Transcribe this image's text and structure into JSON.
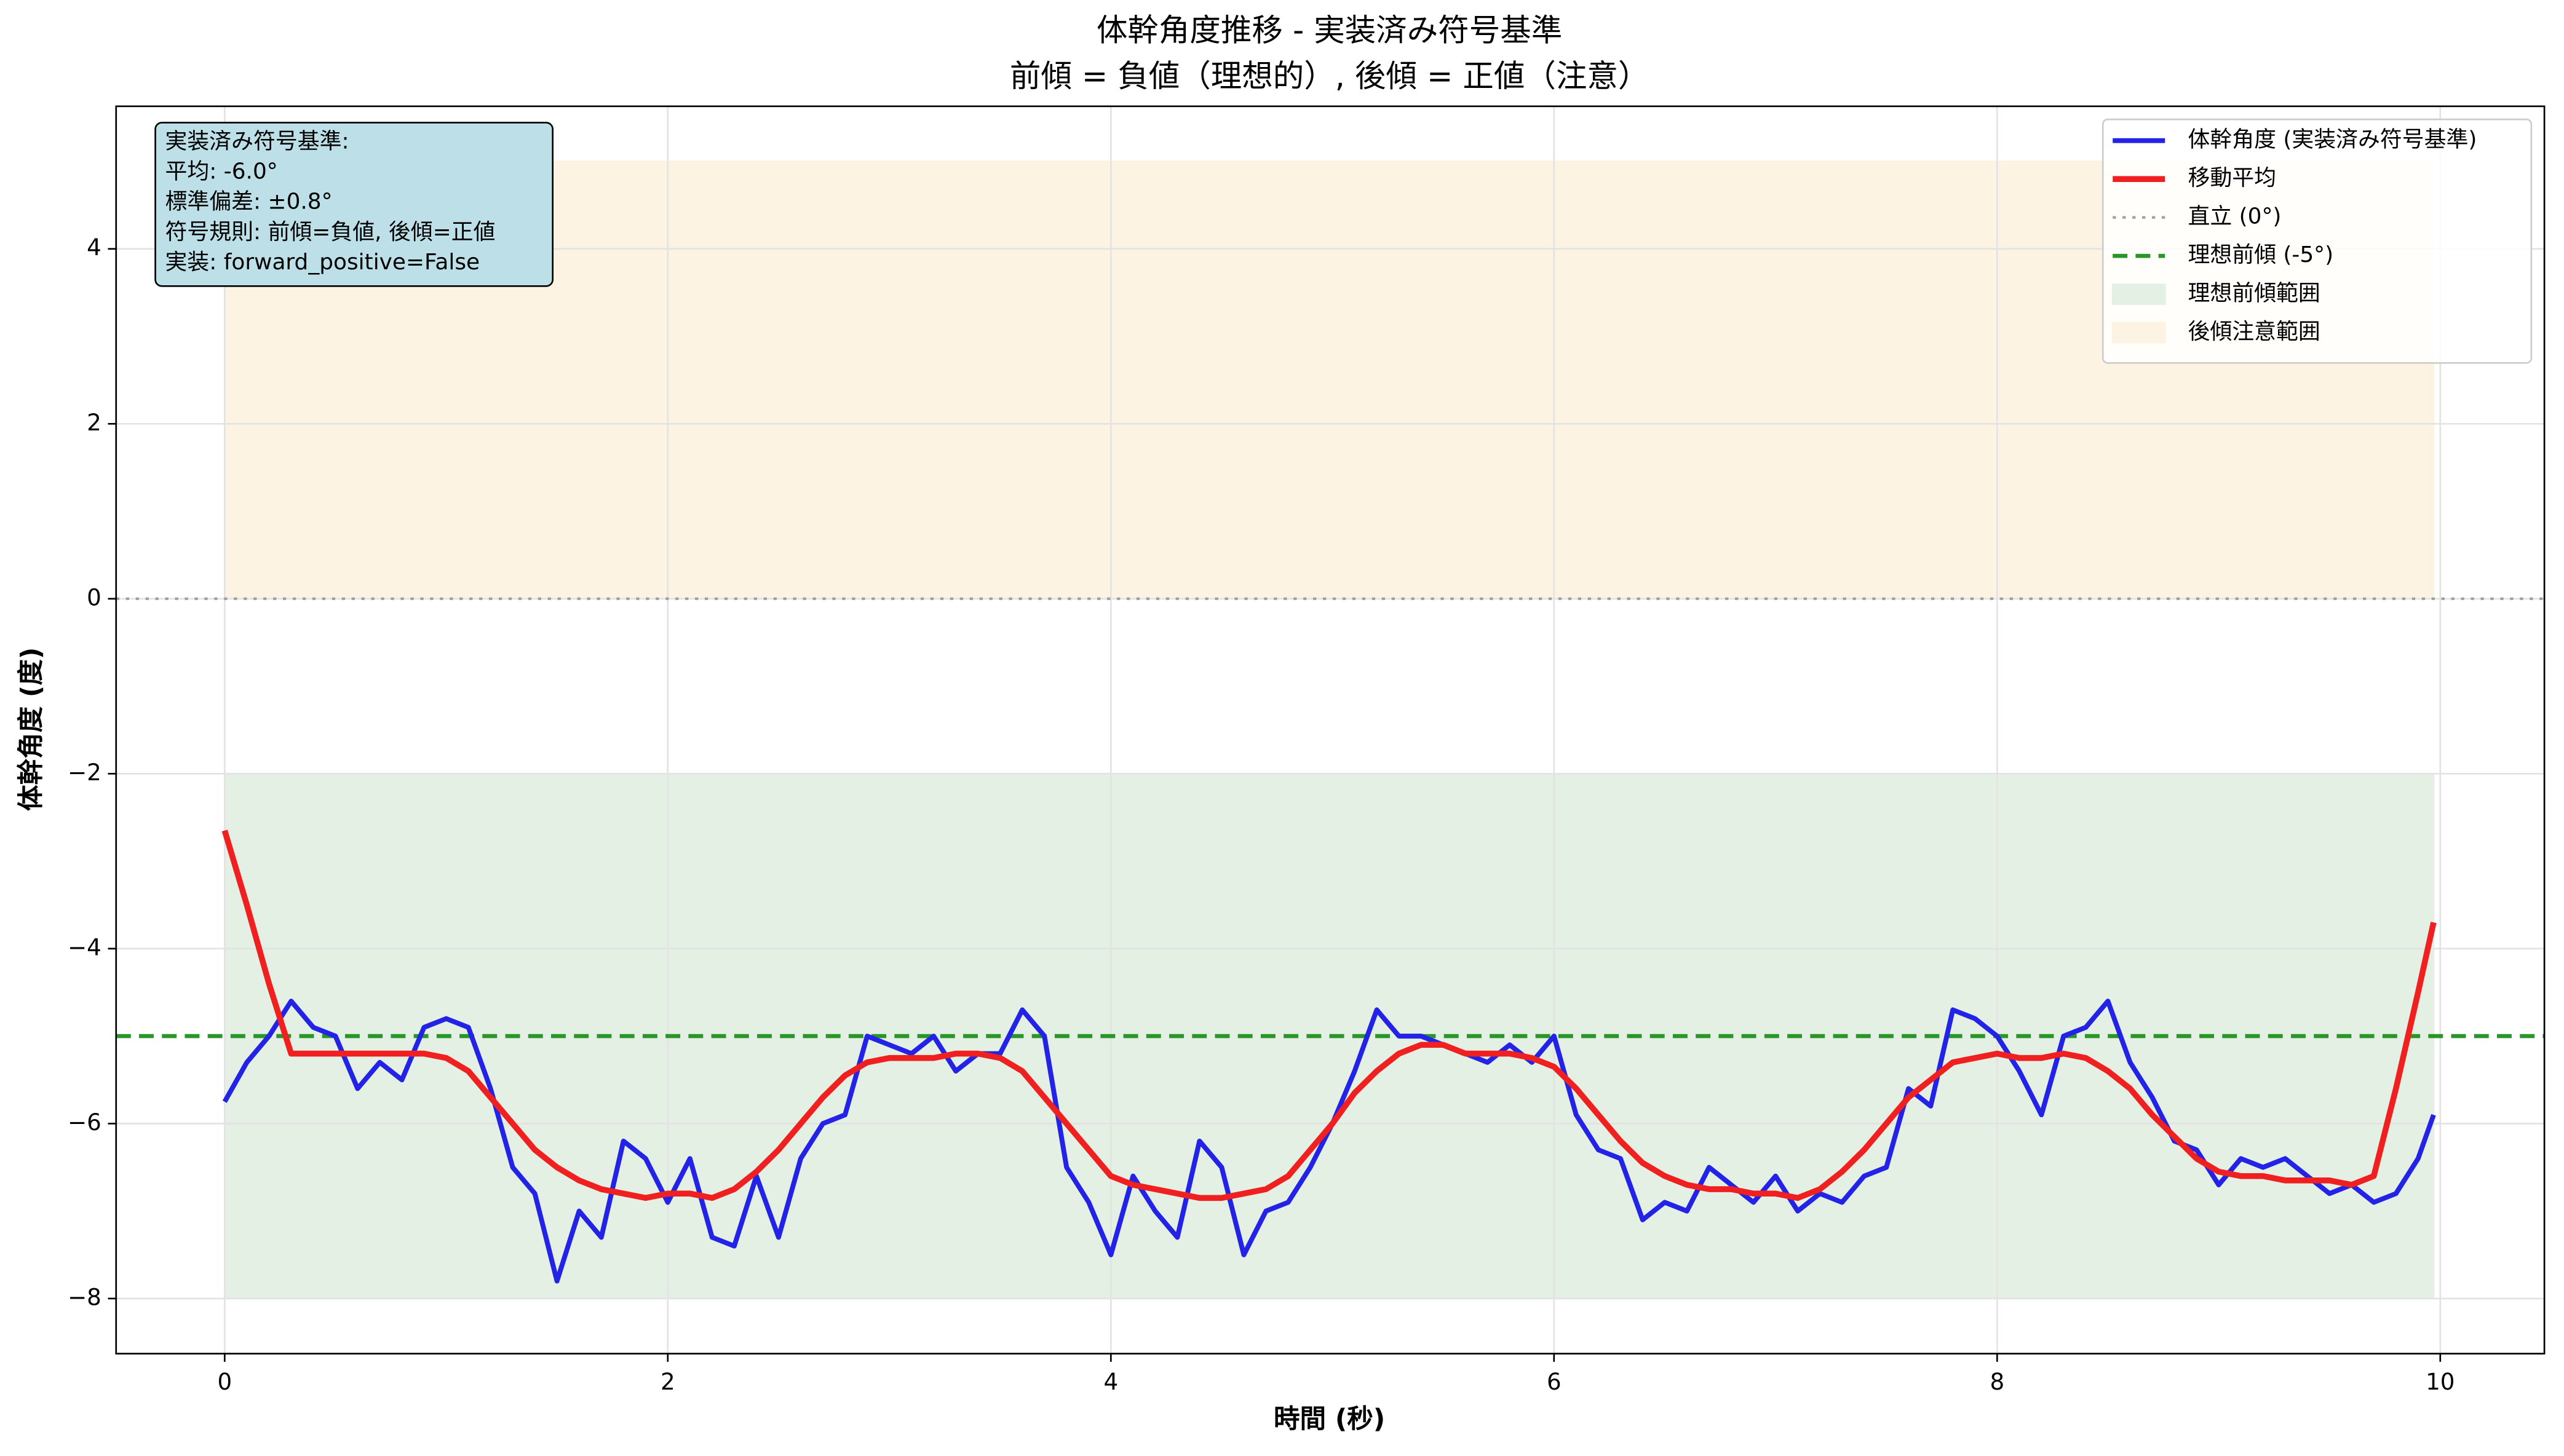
{
  "chart_data": {
    "type": "line",
    "title": "体幹角度推移 - 実装済み符号基準",
    "subtitle": "前傾 = 負値（理想的）, 後傾 = 正値（注意）",
    "xlabel": "時間 (秒)",
    "ylabel": "体幹角度 (度)",
    "xlim": [
      -0.49,
      10.47
    ],
    "ylim": [
      -8.63,
      5.63
    ],
    "xticks": [
      0,
      2,
      4,
      6,
      8,
      10
    ],
    "yticks": [
      {
        "value": -8,
        "label": "−8"
      },
      {
        "value": -6,
        "label": "−6"
      },
      {
        "value": -4,
        "label": "−4"
      },
      {
        "value": -2,
        "label": "−2"
      },
      0,
      2,
      4
    ],
    "grid": true,
    "legend": "upper right",
    "x": [
      0,
      0.1,
      0.2,
      0.3,
      0.4,
      0.5,
      0.6,
      0.7,
      0.8,
      0.9,
      1.0,
      1.1,
      1.2,
      1.3,
      1.4,
      1.5,
      1.6,
      1.7,
      1.8,
      1.9,
      2.0,
      2.1,
      2.2,
      2.3,
      2.4,
      2.5,
      2.6,
      2.7,
      2.8,
      2.9,
      3.0,
      3.1,
      3.2,
      3.3,
      3.4,
      3.5,
      3.6,
      3.7,
      3.8,
      3.9,
      4.0,
      4.1,
      4.2,
      4.3,
      4.4,
      4.5,
      4.6,
      4.7,
      4.8,
      4.9,
      5.0,
      5.1,
      5.2,
      5.3,
      5.4,
      5.5,
      5.6,
      5.7,
      5.8,
      5.9,
      6.0,
      6.1,
      6.2,
      6.3,
      6.4,
      6.5,
      6.6,
      6.7,
      6.8,
      6.9,
      7.0,
      7.1,
      7.2,
      7.3,
      7.4,
      7.5,
      7.6,
      7.7,
      7.8,
      7.9,
      8.0,
      8.1,
      8.2,
      8.3,
      8.4,
      8.5,
      8.6,
      8.7,
      8.8,
      8.9,
      9.0,
      9.1,
      9.2,
      9.3,
      9.4,
      9.5,
      9.6,
      9.7,
      9.8,
      9.9,
      9.97
    ],
    "series": [
      {
        "name": "体幹角度 (実装済み符号基準)",
        "color": "#2323e8",
        "style": "solid",
        "width": 3,
        "values": [
          -5.75,
          -5.3,
          -5.0,
          -4.6,
          -4.9,
          -5.0,
          -5.6,
          -5.3,
          -5.5,
          -4.9,
          -4.8,
          -4.9,
          -5.6,
          -6.5,
          -6.8,
          -7.8,
          -7.0,
          -7.3,
          -6.2,
          -6.4,
          -6.9,
          -6.4,
          -7.3,
          -7.4,
          -6.6,
          -7.3,
          -6.4,
          -6.0,
          -5.9,
          -5.0,
          -5.1,
          -5.2,
          -5.0,
          -5.4,
          -5.2,
          -5.2,
          -4.7,
          -5.0,
          -6.5,
          -6.9,
          -7.5,
          -6.6,
          -7.0,
          -7.3,
          -6.2,
          -6.5,
          -7.5,
          -7.0,
          -6.9,
          -6.5,
          -6.0,
          -5.4,
          -4.7,
          -5.0,
          -5.0,
          -5.1,
          -5.2,
          -5.3,
          -5.1,
          -5.3,
          -5.0,
          -5.9,
          -6.3,
          -6.4,
          -7.1,
          -6.9,
          -7.0,
          -6.5,
          -6.7,
          -6.9,
          -6.6,
          -7.0,
          -6.8,
          -6.9,
          -6.6,
          -6.5,
          -5.6,
          -5.8,
          -4.7,
          -4.8,
          -5.0,
          -5.4,
          -5.9,
          -5.0,
          -4.9,
          -4.6,
          -5.3,
          -5.7,
          -6.2,
          -6.3,
          -6.7,
          -6.4,
          -6.5,
          -6.4,
          -6.6,
          -6.8,
          -6.7,
          -6.9,
          -6.8,
          -6.4,
          -5.9
        ]
      },
      {
        "name": "移動平均",
        "color": "#f02020",
        "style": "solid",
        "width": 3.6,
        "values": [
          -2.65,
          -3.5,
          -4.4,
          -5.2,
          -5.2,
          -5.2,
          -5.2,
          -5.2,
          -5.2,
          -5.2,
          -5.25,
          -5.4,
          -5.7,
          -6.0,
          -6.3,
          -6.5,
          -6.65,
          -6.75,
          -6.8,
          -6.85,
          -6.8,
          -6.8,
          -6.85,
          -6.75,
          -6.55,
          -6.3,
          -6.0,
          -5.7,
          -5.45,
          -5.3,
          -5.25,
          -5.25,
          -5.25,
          -5.2,
          -5.2,
          -5.25,
          -5.4,
          -5.7,
          -6.0,
          -6.3,
          -6.6,
          -6.7,
          -6.75,
          -6.8,
          -6.85,
          -6.85,
          -6.8,
          -6.75,
          -6.6,
          -6.3,
          -6.0,
          -5.65,
          -5.4,
          -5.2,
          -5.1,
          -5.1,
          -5.2,
          -5.2,
          -5.2,
          -5.25,
          -5.35,
          -5.6,
          -5.9,
          -6.2,
          -6.45,
          -6.6,
          -6.7,
          -6.75,
          -6.75,
          -6.8,
          -6.8,
          -6.85,
          -6.75,
          -6.55,
          -6.3,
          -6.0,
          -5.7,
          -5.5,
          -5.3,
          -5.25,
          -5.2,
          -5.25,
          -5.25,
          -5.2,
          -5.25,
          -5.4,
          -5.6,
          -5.9,
          -6.15,
          -6.4,
          -6.55,
          -6.6,
          -6.6,
          -6.65,
          -6.65,
          -6.65,
          -6.7,
          -6.6,
          -5.6,
          -4.5,
          -3.7
        ]
      }
    ],
    "hlines": [
      {
        "name": "直立 (0°)",
        "value": 0,
        "color": "#a0a0a0",
        "style": "dotted"
      },
      {
        "name": "理想前傾 (-5°)",
        "value": -5,
        "color": "#2a962a",
        "style": "dashed"
      }
    ],
    "bands": [
      {
        "name": "理想前傾範囲",
        "range": [
          -8,
          -2
        ],
        "x": [
          0,
          9.97
        ],
        "color": "#e3f0e3"
      },
      {
        "name": "後傾注意範囲",
        "range": [
          0,
          5
        ],
        "x": [
          0,
          9.97
        ],
        "color": "#fdf3e3"
      }
    ],
    "annotation": [
      "実装済み符号基準:",
      "平均: -6.0°",
      "標準偏差: ±0.8°",
      "符号規則: 前傾=負値, 後傾=正値",
      "実装: forward_positive=False"
    ]
  }
}
